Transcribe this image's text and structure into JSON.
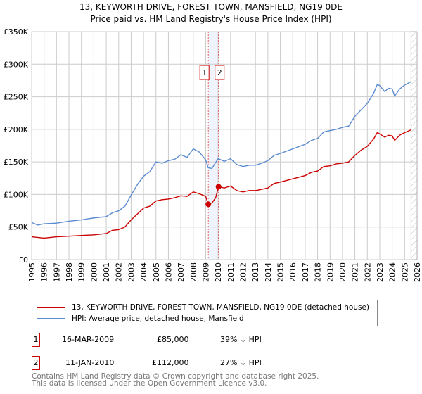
{
  "chart_data": {
    "type": "line",
    "title": "13, KEYWORTH DRIVE, FOREST TOWN, MANSFIELD, NG19 0DE",
    "subtitle": "Price paid vs. HM Land Registry's House Price Index (HPI)",
    "xlim": [
      1995,
      2026
    ],
    "ylim": [
      0,
      350000
    ],
    "y_ticks": [
      0,
      50000,
      100000,
      150000,
      200000,
      250000,
      300000,
      350000
    ],
    "y_tick_labels": [
      "£0",
      "£50K",
      "£100K",
      "£150K",
      "£200K",
      "£250K",
      "£300K",
      "£350K"
    ],
    "x_ticks": [
      "1995",
      "1996",
      "1997",
      "1998",
      "1999",
      "2000",
      "2001",
      "2002",
      "2003",
      "2004",
      "2005",
      "2006",
      "2007",
      "2008",
      "2009",
      "2010",
      "2011",
      "2012",
      "2013",
      "2014",
      "2015",
      "2016",
      "2017",
      "2018",
      "2019",
      "2020",
      "2021",
      "2022",
      "2023",
      "2024",
      "2025",
      "2026"
    ],
    "grid": true,
    "series": [
      {
        "name": "13, KEYWORTH DRIVE, FOREST TOWN, MANSFIELD, NG19 0DE (detached house)",
        "color": "#cc0000",
        "x": [
          1995,
          1996,
          1997,
          1998,
          1999,
          2000,
          2001,
          2001.5,
          2002,
          2002.5,
          2003,
          2003.5,
          2004,
          2004.5,
          2005,
          2005.5,
          2006,
          2006.5,
          2007,
          2007.5,
          2008,
          2008.5,
          2009,
          2009.2,
          2009.5,
          2009.8,
          2010.03,
          2010.5,
          2011,
          2011.5,
          2012,
          2012.5,
          2013,
          2013.5,
          2014,
          2014.5,
          2015,
          2016,
          2017,
          2017.5,
          2018,
          2018.5,
          2019,
          2019.5,
          2020,
          2020.5,
          2021,
          2021.5,
          2022,
          2022.5,
          2022.8,
          2023,
          2023.4,
          2023.7,
          2024,
          2024.2,
          2024.6,
          2025,
          2025.5
        ],
        "y": [
          35000,
          33000,
          35000,
          36000,
          37000,
          38000,
          40000,
          45000,
          46000,
          50000,
          61000,
          70000,
          79000,
          82000,
          90000,
          92000,
          93000,
          95000,
          98000,
          97000,
          104000,
          101000,
          97000,
          85000,
          87000,
          95000,
          112000,
          110000,
          113000,
          106000,
          104000,
          106000,
          106000,
          108000,
          110000,
          117000,
          119000,
          124000,
          129000,
          134000,
          136000,
          143000,
          144000,
          147000,
          148000,
          150000,
          160000,
          168000,
          174000,
          185000,
          195000,
          193000,
          188000,
          191000,
          190000,
          183000,
          191000,
          195000,
          199000
        ]
      },
      {
        "name": "HPI: Average price, detached house, Mansfield",
        "color": "#5b8bd0",
        "x": [
          1995,
          1995.5,
          1996,
          1997,
          1998,
          1999,
          2000,
          2001,
          2001.5,
          2002,
          2002.5,
          2003,
          2003.5,
          2004,
          2004.5,
          2005,
          2005.5,
          2006,
          2006.5,
          2007,
          2007.5,
          2008,
          2008.5,
          2009,
          2009.2,
          2009.5,
          2010,
          2010.5,
          2011,
          2011.5,
          2012,
          2012.5,
          2013,
          2013.5,
          2014,
          2014.5,
          2015,
          2016,
          2017,
          2017.5,
          2018,
          2018.5,
          2019,
          2019.5,
          2020,
          2020.5,
          2021,
          2021.5,
          2022,
          2022.5,
          2022.8,
          2023,
          2023.4,
          2023.7,
          2024,
          2024.2,
          2024.6,
          2025,
          2025.5
        ],
        "y": [
          57000,
          53000,
          55000,
          56000,
          59000,
          61000,
          64000,
          66000,
          72000,
          75000,
          82000,
          99000,
          115000,
          128000,
          135000,
          150000,
          148000,
          152000,
          154000,
          161000,
          157000,
          170000,
          165000,
          153000,
          141000,
          140000,
          155000,
          151000,
          155000,
          146000,
          143000,
          145000,
          145000,
          148000,
          152000,
          160000,
          163000,
          170000,
          177000,
          183000,
          186000,
          196000,
          198000,
          200000,
          203000,
          205000,
          220000,
          230000,
          240000,
          255000,
          269000,
          267000,
          258000,
          263000,
          262000,
          251000,
          262000,
          268000,
          273000
        ]
      }
    ],
    "sales": [
      {
        "id": "1",
        "x": 2009.21,
        "y": 85000,
        "date": "16-MAR-2009",
        "price": "£85,000",
        "hpi": "39% ↓ HPI"
      },
      {
        "id": "2",
        "x": 2010.03,
        "y": 112000,
        "date": "11-JAN-2010",
        "price": "£112,000",
        "hpi": "27% ↓ HPI"
      }
    ],
    "data_end": 2025.5,
    "legend": [
      "13, KEYWORTH DRIVE, FOREST TOWN, MANSFIELD, NG19 0DE (detached house)",
      "HPI: Average price, detached house, Mansfield"
    ]
  },
  "footer": [
    "Contains HM Land Registry data © Crown copyright and database right 2025.",
    "This data is licensed under the Open Government Licence v3.0."
  ]
}
